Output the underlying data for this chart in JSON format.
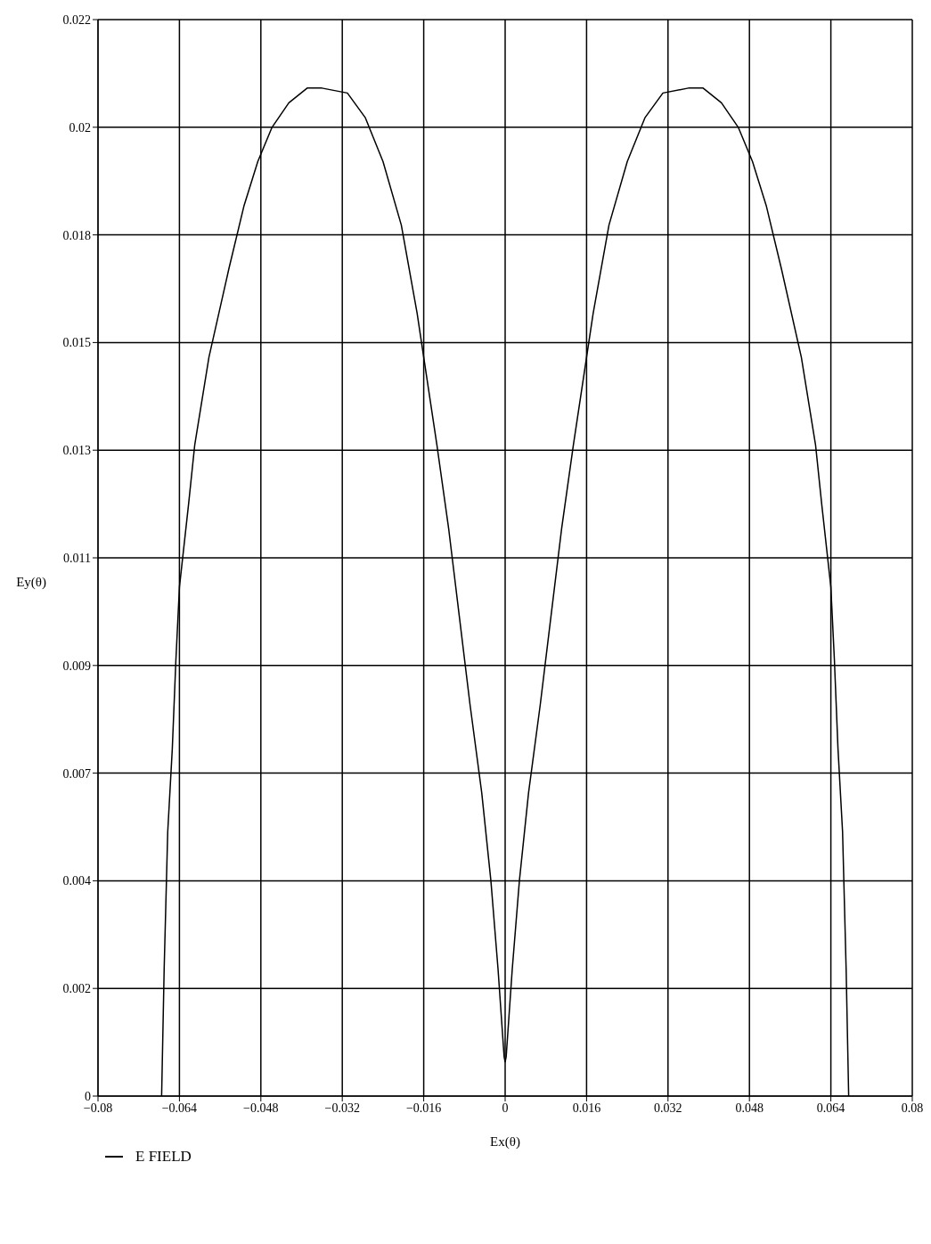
{
  "chart_data": {
    "type": "line",
    "xlabel": "Ex(θ)",
    "ylabel": "Ey(θ)",
    "legend": "bottom left",
    "grid": true,
    "marker": "none",
    "line_style": "solid",
    "xlim": [
      -0.08,
      0.08
    ],
    "xticks": [
      -0.08,
      -0.064,
      -0.048,
      -0.032,
      -0.016,
      0,
      0.016,
      0.032,
      0.048,
      0.064,
      0.08
    ],
    "ylim": [
      0,
      0.022
    ],
    "yticks": [
      0,
      {
        "value": 0.0022,
        "label": "0.002"
      },
      {
        "value": 0.0044,
        "label": "0.004"
      },
      {
        "value": 0.0066,
        "label": "0.007"
      },
      {
        "value": 0.0088,
        "label": "0.009"
      },
      0.011,
      {
        "value": 0.0132,
        "label": "0.013"
      },
      {
        "value": 0.0154,
        "label": "0.015"
      },
      {
        "value": 0.0176,
        "label": "0.018"
      },
      {
        "value": 0.0198,
        "label": "0.02"
      },
      0.022
    ],
    "series": [
      {
        "name": "E FIELD",
        "color": "#000000",
        "x": [
          -0.0675,
          -0.067,
          -0.0663,
          -0.0654,
          -0.0647,
          -0.064,
          -0.0622,
          -0.061,
          -0.0582,
          -0.0543,
          -0.0513,
          -0.0486,
          -0.0458,
          -0.0425,
          -0.0389,
          -0.036,
          -0.031,
          -0.0275,
          -0.024,
          -0.0204,
          -0.0173,
          -0.016,
          -0.0134,
          -0.0111,
          -0.009,
          -0.0069,
          -0.0046,
          -0.0028,
          -0.0014,
          -0.0002,
          0,
          0.0002,
          0.0014,
          0.0028,
          0.0046,
          0.0069,
          0.009,
          0.0111,
          0.0134,
          0.016,
          0.0173,
          0.0204,
          0.024,
          0.0275,
          0.031,
          0.036,
          0.0389,
          0.0425,
          0.0458,
          0.0486,
          0.0513,
          0.0543,
          0.0582,
          0.061,
          0.0622,
          0.064,
          0.0647,
          0.0654,
          0.0663,
          0.067,
          0.0675
        ],
        "values": [
          0,
          0.0026,
          0.0054,
          0.0071,
          0.0089,
          0.0104,
          0.0121,
          0.0133,
          0.0151,
          0.0169,
          0.0182,
          0.0191,
          0.0198,
          0.0203,
          0.0206,
          0.0206,
          0.0205,
          0.02,
          0.0191,
          0.0178,
          0.016,
          0.0151,
          0.0133,
          0.0116,
          0.0098,
          0.008,
          0.0062,
          0.0044,
          0.0026,
          0.0008,
          0.0007,
          0.0008,
          0.0026,
          0.0044,
          0.0062,
          0.008,
          0.0098,
          0.0116,
          0.0133,
          0.0151,
          0.016,
          0.0178,
          0.0191,
          0.02,
          0.0205,
          0.0206,
          0.0206,
          0.0203,
          0.0198,
          0.0191,
          0.0182,
          0.0169,
          0.0151,
          0.0133,
          0.0121,
          0.0104,
          0.0089,
          0.0071,
          0.0054,
          0.0026,
          0
        ]
      }
    ]
  }
}
